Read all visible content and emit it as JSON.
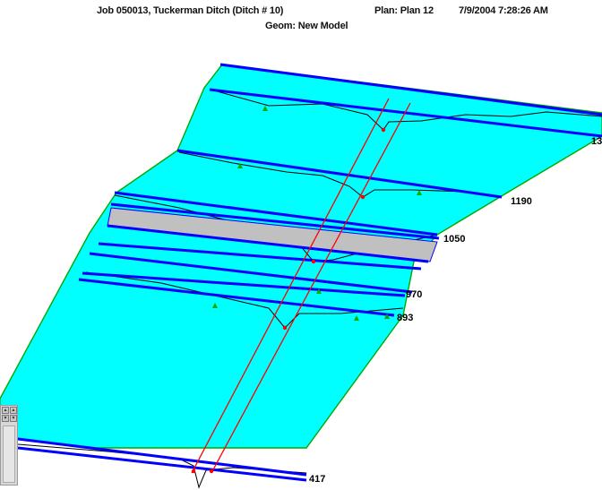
{
  "header": {
    "job": "Job 050013, Tuckerman Ditch (Ditch # 10)",
    "plan": "Plan: Plan 12",
    "datetime": "7/9/2004 7:28:26 AM",
    "geometry": "Geom: New Model"
  },
  "stations": {
    "s1": "13",
    "s2": "1190",
    "s3": "1050",
    "s4": "970",
    "s5": "893",
    "s6": "417"
  },
  "colors": {
    "water_surface": "#00ffff",
    "cross_section": "#0000ff",
    "bridge_deck": "#c0c0c0",
    "channel_line": "#ff0000",
    "terrain_line": "#000000",
    "bank_marker": "#00aa00"
  }
}
